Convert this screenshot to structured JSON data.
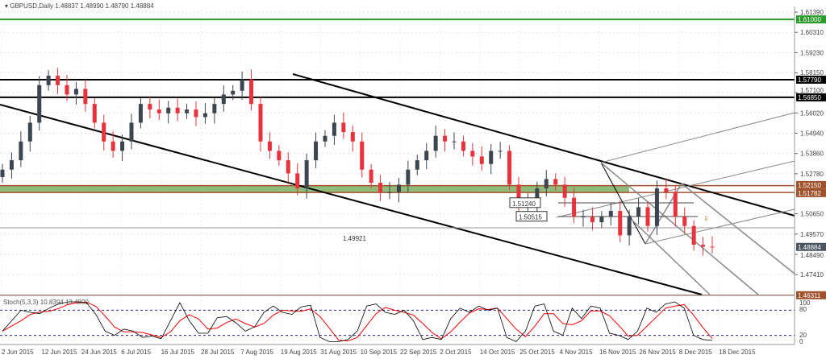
{
  "header": {
    "symbol": "GBPUSD,Daily",
    "ohlc": "1.48837 1.48990 1.48790 1.48884"
  },
  "chart_data": {
    "type": "candlestick",
    "title": "GBPUSD,Daily",
    "ylim": [
      1.4631,
      1.6139
    ],
    "price_ticks": [
      "1.61390",
      "1.60310",
      "1.59230",
      "1.58150",
      "1.57100",
      "1.56020",
      "1.54940",
      "1.53860",
      "1.52780",
      "1.50650",
      "1.49570",
      "1.48490",
      "1.47410"
    ],
    "date_ticks": [
      "2 Jun 2015",
      "12 Jun 2015",
      "24 Jun 2015",
      "6 Jul 2015",
      "16 Jul 2015",
      "28 Jul 2015",
      "7 Aug 2015",
      "19 Aug 2015",
      "31 Aug 2015",
      "10 Sep 2015",
      "22 Sep 2015",
      "2 Oct 2015",
      "14 Oct 2015",
      "25 Oct 2015",
      "4 Nov 2015",
      "16 Nov 2015",
      "26 Nov 2015",
      "8 Dec 2015",
      "18 Dec 2015"
    ],
    "closes": [
      1.53,
      1.535,
      1.545,
      1.555,
      1.575,
      1.58,
      1.575,
      1.57,
      1.573,
      1.565,
      1.555,
      1.545,
      1.54,
      1.545,
      1.555,
      1.565,
      1.562,
      1.56,
      1.563,
      1.56,
      1.562,
      1.558,
      1.56,
      1.565,
      1.57,
      1.572,
      1.578,
      1.565,
      1.545,
      1.54,
      1.535,
      1.528,
      1.52,
      1.535,
      1.545,
      1.548,
      1.555,
      1.55,
      1.545,
      1.53,
      1.523,
      1.518,
      1.518,
      1.522,
      1.53,
      1.535,
      1.54,
      1.548,
      1.545,
      1.545,
      1.54,
      1.537,
      1.533,
      1.54,
      1.54,
      1.522,
      1.51,
      1.512,
      1.52,
      1.525,
      1.522,
      1.515,
      1.505,
      1.505,
      1.502,
      1.505,
      1.508,
      1.495,
      1.505,
      1.51,
      1.5,
      1.52,
      1.518,
      1.505,
      1.5,
      1.49,
      1.489,
      1.48884
    ],
    "levels": [
      {
        "price": 1.61,
        "label": "1.61000",
        "color": "#2a9a2a",
        "label_color": "#ffffff"
      },
      {
        "price": 1.5779,
        "label": "1.57790",
        "color": "#000000",
        "label_color": "#ffffff"
      },
      {
        "price": 1.5685,
        "label": "1.56850",
        "color": "#000000",
        "label_color": "#ffffff"
      },
      {
        "price": 1.5215,
        "label": "1.52150",
        "color": "#a0522d",
        "label_color": "#ffffff"
      },
      {
        "price": 1.51782,
        "label": "1.51782",
        "color": "#a0522d",
        "label_color": "#ffffff"
      },
      {
        "price": 1.46311,
        "label": "1.46311",
        "color": "#a0522d",
        "label_color": "#ffffff"
      },
      {
        "price": 1.48884,
        "label": "1.48884",
        "color": "#4a5560",
        "label_color": "#ffffff"
      }
    ],
    "annotations": [
      {
        "price": 1.49921,
        "text": "1.49921"
      },
      {
        "price": 1.5124,
        "text": "1.51240"
      },
      {
        "price": 1.50515,
        "text": "1.50515"
      }
    ],
    "zone": {
      "from": 1.51782,
      "to": 1.5215,
      "color": "#8fbc7a"
    },
    "stochastic": {
      "label": "Stoch(5,3,3) 10.8394 13.4800",
      "levels": [
        80,
        20
      ],
      "axis_ticks": [
        "100",
        "80",
        "20",
        "0"
      ],
      "k": [
        30,
        55,
        80,
        75,
        72,
        85,
        95,
        100,
        100,
        98,
        70,
        30,
        20,
        35,
        30,
        15,
        18,
        12,
        55,
        98,
        55,
        25,
        25,
        62,
        65,
        50,
        30,
        40,
        75,
        90,
        75,
        70,
        88,
        92,
        15,
        5,
        5,
        10,
        30,
        90,
        95,
        75,
        70,
        80,
        55,
        10,
        15,
        10,
        60,
        85,
        75,
        90,
        80,
        85,
        15,
        5,
        30,
        90,
        95,
        30,
        20,
        85,
        60,
        90,
        85,
        25,
        20,
        10,
        30,
        85,
        75,
        95,
        100,
        85,
        20,
        10,
        8
      ],
      "k_color": "#000000",
      "d_color": "#ff0000"
    }
  }
}
